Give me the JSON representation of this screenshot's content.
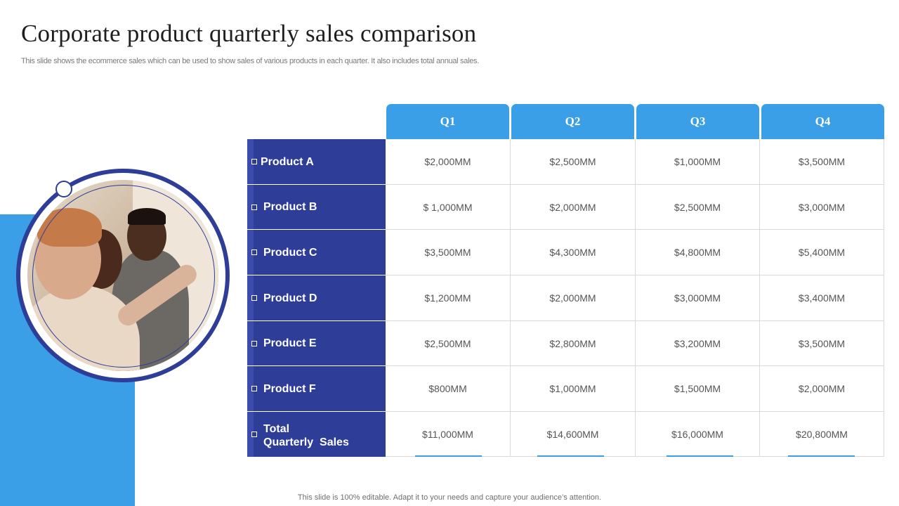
{
  "title": "Corporate product quarterly sales comparison",
  "subtitle": "This slide shows the ecommerce sales which can be used to show sales of various products in each quarter. It also includes total annual sales.",
  "footer": "This slide is 100% editable. Adapt it to your needs and capture your audience’s attention.",
  "colors": {
    "accent_blue": "#3a9fe6",
    "navy": "#2e3d98"
  },
  "table": {
    "columns": [
      "Q1",
      "Q2",
      "Q3",
      "Q4"
    ],
    "rows": [
      {
        "label": "Product A",
        "values": [
          "$2,000MM",
          "$2,500MM",
          "$1,000MM",
          "$3,500MM"
        ]
      },
      {
        "label": "Product B",
        "values": [
          "$ 1,000MM",
          "$2,000MM",
          "$2,500MM",
          "$3,000MM"
        ]
      },
      {
        "label": "Product C",
        "values": [
          "$3,500MM",
          "$4,300MM",
          "$4,800MM",
          "$5,400MM"
        ]
      },
      {
        "label": "Product D",
        "values": [
          "$1,200MM",
          "$2,000MM",
          "$3,000MM",
          "$3,400MM"
        ]
      },
      {
        "label": "Product E",
        "values": [
          "$2,500MM",
          "$2,800MM",
          "$3,200MM",
          "$3,500MM"
        ]
      },
      {
        "label": "Product F",
        "values": [
          "$800MM",
          "$1,000MM",
          "$1,500MM",
          "$2,000MM"
        ]
      },
      {
        "label_line1": "Total",
        "label_line2": "Quarterly  Sales",
        "values": [
          "$11,000MM",
          "$14,600MM",
          "$16,000MM",
          "$20,800MM"
        ]
      }
    ]
  }
}
